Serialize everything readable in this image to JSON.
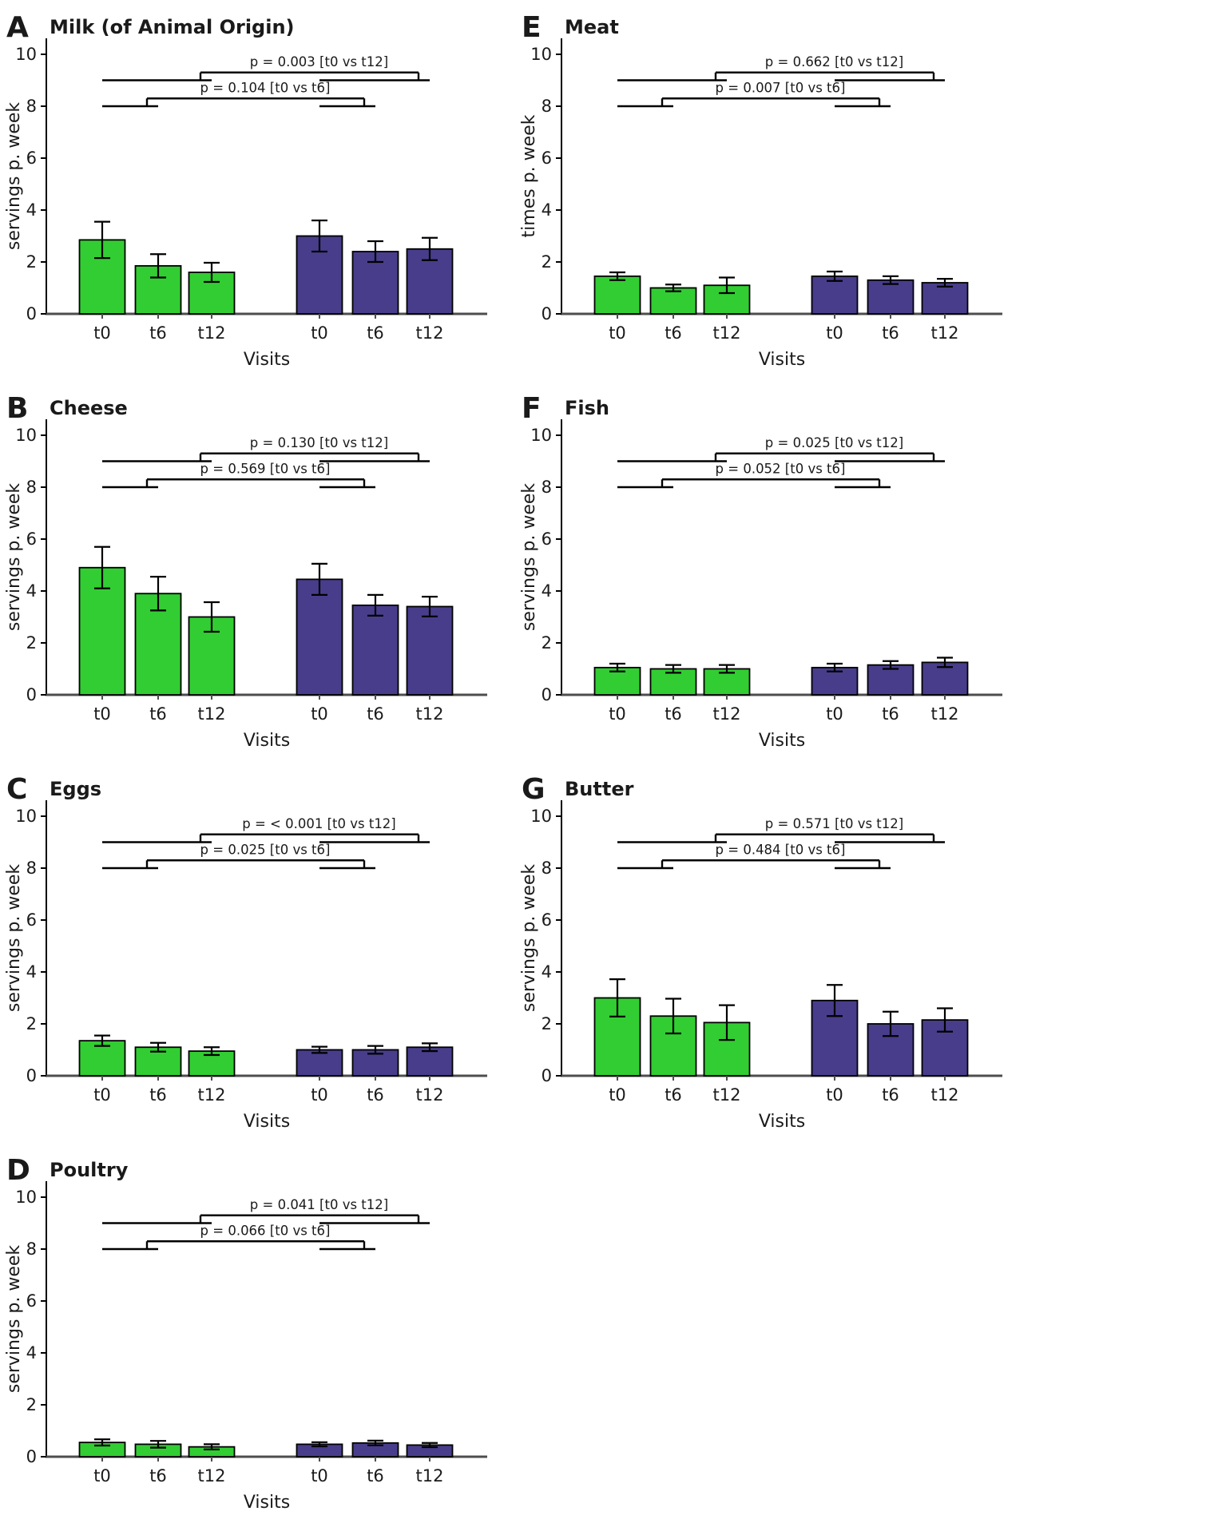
{
  "figure": {
    "colors": {
      "group1_fill": "#32CD32",
      "group2_fill": "#483D8B",
      "bar_edge": "#000000",
      "error_bar": "#000000",
      "bracket": "#000000",
      "axis_left": "#000000",
      "axis_bottom": "#4d4d4d",
      "text": "#1a1a1a"
    },
    "xlabel": "Visits",
    "x_categories": [
      "t0",
      "t6",
      "t12"
    ],
    "yticks": [
      0,
      2,
      4,
      6,
      8,
      10
    ],
    "ylim": [
      0,
      10
    ]
  },
  "chart_data": [
    {
      "type": "bar",
      "panel": "A",
      "title": "Milk (of Animal Origin)",
      "ylabel": "servings p. week",
      "xlabel": "Visits",
      "ylim": [
        0,
        10
      ],
      "yticks": [
        0,
        2,
        4,
        6,
        8,
        10
      ],
      "categories": [
        "t0",
        "t6",
        "t12"
      ],
      "series": [
        {
          "name": "group-1-green",
          "values": [
            2.85,
            1.85,
            1.6
          ],
          "errors": [
            0.7,
            0.45,
            0.37
          ]
        },
        {
          "name": "group-2-purple",
          "values": [
            3.0,
            2.4,
            2.5
          ],
          "errors": [
            0.6,
            0.4,
            0.43
          ]
        }
      ],
      "annotations": [
        {
          "label": "p = 0.104 [t0 vs t6]",
          "comparison": "t0 vs t6",
          "level": 8
        },
        {
          "label": "p = 0.003 [t0 vs t12]",
          "comparison": "t0 vs t12",
          "level": 9
        }
      ]
    },
    {
      "type": "bar",
      "panel": "B",
      "title": "Cheese",
      "ylabel": "servings p. week",
      "xlabel": "Visits",
      "ylim": [
        0,
        10
      ],
      "yticks": [
        0,
        2,
        4,
        6,
        8,
        10
      ],
      "categories": [
        "t0",
        "t6",
        "t12"
      ],
      "series": [
        {
          "name": "group-1-green",
          "values": [
            4.9,
            3.9,
            3.0
          ],
          "errors": [
            0.8,
            0.65,
            0.57
          ]
        },
        {
          "name": "group-2-purple",
          "values": [
            4.45,
            3.45,
            3.4
          ],
          "errors": [
            0.6,
            0.4,
            0.38
          ]
        }
      ],
      "annotations": [
        {
          "label": "p = 0.569 [t0 vs t6]",
          "comparison": "t0 vs t6",
          "level": 8
        },
        {
          "label": "p = 0.130 [t0 vs t12]",
          "comparison": "t0 vs t12",
          "level": 9
        }
      ]
    },
    {
      "type": "bar",
      "panel": "C",
      "title": "Eggs",
      "ylabel": "servings p. week",
      "xlabel": "Visits",
      "ylim": [
        0,
        10
      ],
      "yticks": [
        0,
        2,
        4,
        6,
        8,
        10
      ],
      "categories": [
        "t0",
        "t6",
        "t12"
      ],
      "series": [
        {
          "name": "group-1-green",
          "values": [
            1.35,
            1.1,
            0.95
          ],
          "errors": [
            0.2,
            0.17,
            0.15
          ]
        },
        {
          "name": "group-2-purple",
          "values": [
            1.0,
            1.0,
            1.1
          ],
          "errors": [
            0.12,
            0.15,
            0.15
          ]
        }
      ],
      "annotations": [
        {
          "label": "p = 0.025 [t0 vs t6]",
          "comparison": "t0 vs t6",
          "level": 8
        },
        {
          "label": "p = < 0.001 [t0 vs t12]",
          "comparison": "t0 vs t12",
          "level": 9
        }
      ]
    },
    {
      "type": "bar",
      "panel": "D",
      "title": "Poultry",
      "ylabel": "servings p. week",
      "xlabel": "Visits",
      "ylim": [
        0,
        10
      ],
      "yticks": [
        0,
        2,
        4,
        6,
        8,
        10
      ],
      "categories": [
        "t0",
        "t6",
        "t12"
      ],
      "series": [
        {
          "name": "group-1-green",
          "values": [
            0.55,
            0.48,
            0.38
          ],
          "errors": [
            0.12,
            0.13,
            0.1
          ]
        },
        {
          "name": "group-2-purple",
          "values": [
            0.48,
            0.53,
            0.45
          ],
          "errors": [
            0.08,
            0.09,
            0.08
          ]
        }
      ],
      "annotations": [
        {
          "label": "p = 0.066 [t0 vs t6]",
          "comparison": "t0 vs t6",
          "level": 8
        },
        {
          "label": "p = 0.041 [t0 vs t12]",
          "comparison": "t0 vs t12",
          "level": 9
        }
      ]
    },
    {
      "type": "bar",
      "panel": "E",
      "title": "Meat",
      "ylabel": "times p. week",
      "xlabel": "Visits",
      "ylim": [
        0,
        10
      ],
      "yticks": [
        0,
        2,
        4,
        6,
        8,
        10
      ],
      "categories": [
        "t0",
        "t6",
        "t12"
      ],
      "series": [
        {
          "name": "group-1-green",
          "values": [
            1.45,
            1.0,
            1.1
          ],
          "errors": [
            0.15,
            0.13,
            0.3
          ]
        },
        {
          "name": "group-2-purple",
          "values": [
            1.45,
            1.3,
            1.2
          ],
          "errors": [
            0.18,
            0.15,
            0.15
          ]
        }
      ],
      "annotations": [
        {
          "label": "p = 0.007 [t0 vs t6]",
          "comparison": "t0 vs t6",
          "level": 8
        },
        {
          "label": "p = 0.662 [t0 vs t12]",
          "comparison": "t0 vs t12",
          "level": 9
        }
      ]
    },
    {
      "type": "bar",
      "panel": "F",
      "title": "Fish",
      "ylabel": "servings p. week",
      "xlabel": "Visits",
      "ylim": [
        0,
        10
      ],
      "yticks": [
        0,
        2,
        4,
        6,
        8,
        10
      ],
      "categories": [
        "t0",
        "t6",
        "t12"
      ],
      "series": [
        {
          "name": "group-1-green",
          "values": [
            1.05,
            1.0,
            1.0
          ],
          "errors": [
            0.15,
            0.15,
            0.15
          ]
        },
        {
          "name": "group-2-purple",
          "values": [
            1.05,
            1.15,
            1.25
          ],
          "errors": [
            0.15,
            0.15,
            0.18
          ]
        }
      ],
      "annotations": [
        {
          "label": "p = 0.052 [t0 vs t6]",
          "comparison": "t0 vs t6",
          "level": 8
        },
        {
          "label": "p = 0.025 [t0 vs t12]",
          "comparison": "t0 vs t12",
          "level": 9
        }
      ]
    },
    {
      "type": "bar",
      "panel": "G",
      "title": "Butter",
      "ylabel": "servings p. week",
      "xlabel": "Visits",
      "ylim": [
        0,
        10
      ],
      "yticks": [
        0,
        2,
        4,
        6,
        8,
        10
      ],
      "categories": [
        "t0",
        "t6",
        "t12"
      ],
      "series": [
        {
          "name": "group-1-green",
          "values": [
            3.0,
            2.3,
            2.05
          ],
          "errors": [
            0.72,
            0.67,
            0.67
          ]
        },
        {
          "name": "group-2-purple",
          "values": [
            2.9,
            2.0,
            2.15
          ],
          "errors": [
            0.6,
            0.47,
            0.45
          ]
        }
      ],
      "annotations": [
        {
          "label": "p = 0.484 [t0 vs t6]",
          "comparison": "t0 vs t6",
          "level": 8
        },
        {
          "label": "p = 0.571 [t0 vs t12]",
          "comparison": "t0 vs t12",
          "level": 9
        }
      ]
    }
  ]
}
